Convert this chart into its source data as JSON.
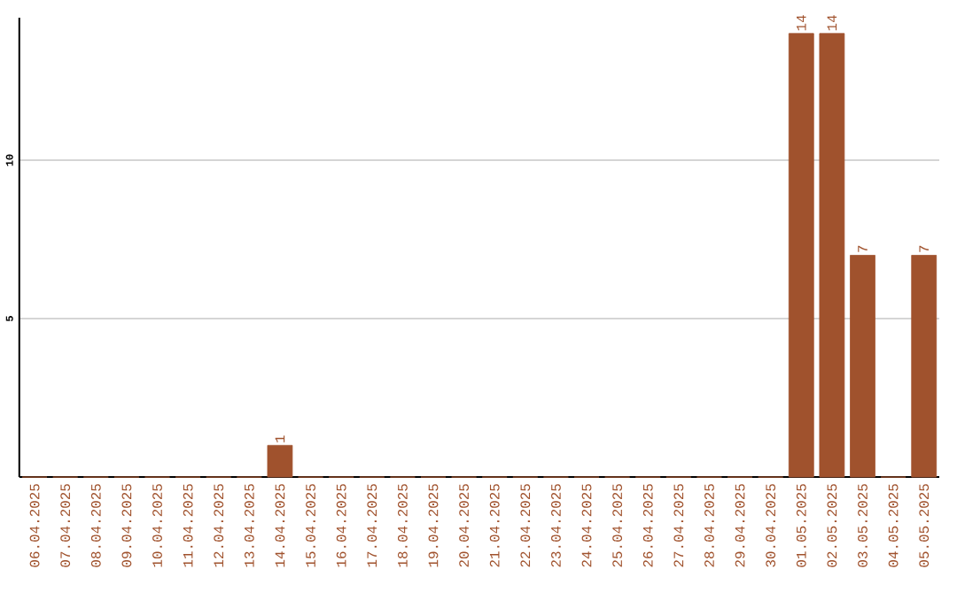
{
  "chart_data": {
    "type": "bar",
    "categories": [
      "06.04.2025",
      "07.04.2025",
      "08.04.2025",
      "09.04.2025",
      "10.04.2025",
      "11.04.2025",
      "12.04.2025",
      "13.04.2025",
      "14.04.2025",
      "15.04.2025",
      "16.04.2025",
      "17.04.2025",
      "18.04.2025",
      "19.04.2025",
      "20.04.2025",
      "21.04.2025",
      "22.04.2025",
      "23.04.2025",
      "24.04.2025",
      "25.04.2025",
      "26.04.2025",
      "27.04.2025",
      "28.04.2025",
      "29.04.2025",
      "30.04.2025",
      "01.05.2025",
      "02.05.2025",
      "03.05.2025",
      "04.05.2025",
      "05.05.2025"
    ],
    "values": [
      0,
      0,
      0,
      0,
      0,
      0,
      0,
      0,
      1,
      0,
      0,
      0,
      0,
      0,
      0,
      0,
      0,
      0,
      0,
      0,
      0,
      0,
      0,
      0,
      0,
      14,
      14,
      7,
      0,
      7
    ],
    "value_labels": [
      null,
      null,
      null,
      null,
      null,
      null,
      null,
      null,
      "1",
      null,
      null,
      null,
      null,
      null,
      null,
      null,
      null,
      null,
      null,
      null,
      null,
      null,
      null,
      null,
      null,
      "14",
      "14",
      "7",
      null,
      "7"
    ],
    "color": "#a0522d",
    "ylim": [
      0,
      14.5
    ],
    "yticks": [
      5,
      10
    ],
    "grid": "y"
  }
}
